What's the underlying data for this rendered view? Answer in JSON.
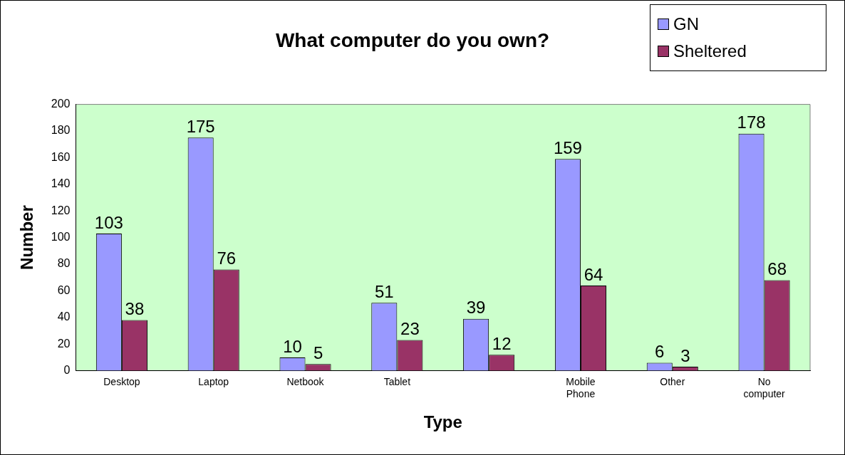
{
  "chart_data": {
    "type": "bar",
    "title": "What computer do you own?",
    "xlabel": "Type",
    "ylabel": "Number",
    "categories": [
      "Desktop",
      "Laptop",
      "Netbook",
      "Tablet",
      null,
      "Mobile Phone",
      "Other",
      "No computer"
    ],
    "series": [
      {
        "name": "GN",
        "color": "#9999ff",
        "values": [
          103,
          175,
          10,
          51,
          39,
          159,
          6,
          178
        ]
      },
      {
        "name": "Sheltered",
        "color": "#993366",
        "values": [
          38,
          76,
          5,
          23,
          12,
          64,
          3,
          68
        ]
      }
    ],
    "ylim": [
      0,
      200
    ],
    "yticks": [
      0,
      20,
      40,
      60,
      80,
      100,
      120,
      140,
      160,
      180,
      200
    ],
    "grid": false,
    "legend": "top right",
    "data_labels": true
  }
}
